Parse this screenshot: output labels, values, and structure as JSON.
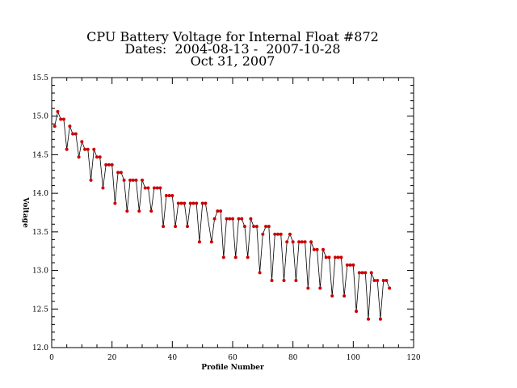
{
  "chart_data": {
    "type": "line",
    "title_lines": [
      "CPU Battery Voltage for Internal Float #872",
      "Dates:  2004-08-13 -  2007-10-28",
      "Oct 31, 2007"
    ],
    "xlabel": "Profile Number",
    "ylabel": "Voltage",
    "xlim": [
      0,
      120
    ],
    "ylim": [
      12.0,
      15.5
    ],
    "xticks": [
      "0",
      "20",
      "40",
      "60",
      "80",
      "100",
      "120"
    ],
    "yticks": [
      "12.0",
      "12.5",
      "13.0",
      "13.5",
      "14.0",
      "14.5",
      "15.0",
      "15.5"
    ],
    "grid": false,
    "line_color": "#000000",
    "marker_color": "#cc0000",
    "series": [
      {
        "x": [
          1,
          2,
          3,
          4,
          5,
          6,
          7,
          8,
          9,
          10,
          11,
          12,
          13,
          14,
          15,
          16,
          17,
          18,
          19,
          20,
          21,
          22,
          23,
          24,
          25,
          26,
          27,
          28,
          29,
          30,
          31,
          32,
          33,
          34,
          35,
          36,
          37,
          38,
          39,
          40,
          41,
          42,
          43,
          44,
          45,
          46,
          47,
          48,
          49,
          50,
          51,
          53,
          54,
          55,
          56,
          57,
          58,
          59,
          60,
          61,
          62,
          63,
          64,
          65,
          66,
          67,
          68,
          69,
          70,
          71,
          72,
          73,
          74,
          75,
          76,
          77,
          78,
          79,
          80,
          81,
          82,
          83,
          84,
          85,
          86,
          87,
          88,
          89,
          90,
          91,
          92,
          93,
          94,
          95,
          96,
          97,
          98,
          99,
          100,
          101,
          102,
          103,
          104,
          105,
          106,
          107,
          108,
          109,
          110,
          111,
          112
        ],
        "y": [
          14.87,
          15.06,
          14.96,
          14.96,
          14.57,
          14.87,
          14.77,
          14.77,
          14.47,
          14.67,
          14.57,
          14.57,
          14.17,
          14.57,
          14.47,
          14.47,
          14.07,
          14.37,
          14.37,
          14.37,
          13.87,
          14.27,
          14.27,
          14.17,
          13.77,
          14.17,
          14.17,
          14.17,
          13.77,
          14.17,
          14.07,
          14.07,
          13.77,
          14.07,
          14.07,
          14.07,
          13.57,
          13.97,
          13.97,
          13.97,
          13.57,
          13.87,
          13.87,
          13.87,
          13.57,
          13.87,
          13.87,
          13.87,
          13.37,
          13.87,
          13.87,
          13.37,
          13.67,
          13.77,
          13.77,
          13.17,
          13.67,
          13.67,
          13.67,
          13.17,
          13.67,
          13.67,
          13.57,
          13.17,
          13.67,
          13.57,
          13.57,
          12.97,
          13.47,
          13.57,
          13.57,
          12.87,
          13.47,
          13.47,
          13.47,
          12.87,
          13.37,
          13.47,
          13.37,
          12.87,
          13.37,
          13.37,
          13.37,
          12.77,
          13.37,
          13.27,
          13.27,
          12.77,
          13.27,
          13.17,
          13.17,
          12.67,
          13.17,
          13.17,
          13.17,
          12.67,
          13.07,
          13.07,
          13.07,
          12.47,
          12.97,
          12.97,
          12.97,
          12.37,
          12.97,
          12.87,
          12.87,
          12.37,
          12.87,
          12.87,
          12.77
        ]
      }
    ]
  }
}
